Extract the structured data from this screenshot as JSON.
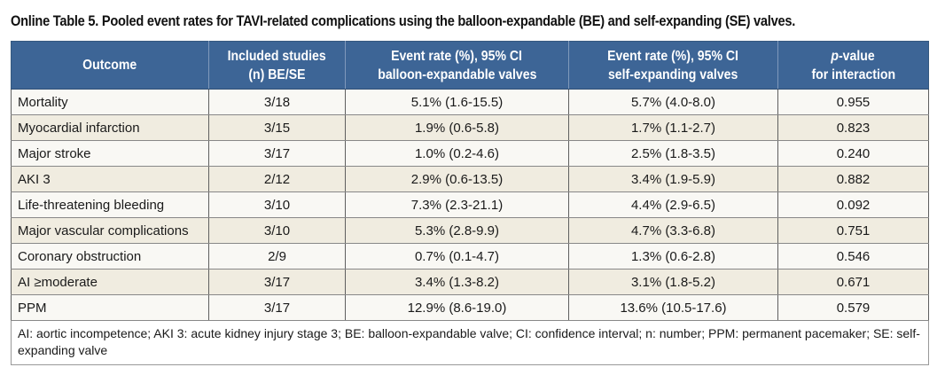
{
  "caption": "Online Table 5. Pooled event rates for TAVI-related complications using the balloon-expandable (BE) and self-expanding (SE) valves.",
  "header": {
    "outcome": "Outcome",
    "studies_line1": "Included studies",
    "studies_line2": "(n) BE/SE",
    "be_line1": "Event rate (%), 95% CI",
    "be_line2": "balloon-expandable valves",
    "se_line1": "Event rate (%), 95% CI",
    "se_line2": "self-expanding valves",
    "p_italic": "p",
    "p_line1_rest": "-value",
    "p_line2": "for interaction"
  },
  "rows": [
    {
      "outcome": "Mortality",
      "studies": "3/18",
      "be": "5.1% (1.6-15.5)",
      "se": "5.7% (4.0-8.0)",
      "p": "0.955"
    },
    {
      "outcome": "Myocardial infarction",
      "studies": "3/15",
      "be": "1.9% (0.6-5.8)",
      "se": "1.7% (1.1-2.7)",
      "p": "0.823"
    },
    {
      "outcome": "Major stroke",
      "studies": "3/17",
      "be": "1.0% (0.2-4.6)",
      "se": "2.5% (1.8-3.5)",
      "p": "0.240"
    },
    {
      "outcome": "AKI 3",
      "studies": "2/12",
      "be": "2.9% (0.6-13.5)",
      "se": "3.4% (1.9-5.9)",
      "p": "0.882"
    },
    {
      "outcome": "Life-threatening bleeding",
      "studies": "3/10",
      "be": "7.3% (2.3-21.1)",
      "se": "4.4% (2.9-6.5)",
      "p": "0.092"
    },
    {
      "outcome": "Major vascular complications",
      "studies": "3/10",
      "be": "5.3% (2.8-9.9)",
      "se": "4.7% (3.3-6.8)",
      "p": "0.751"
    },
    {
      "outcome": "Coronary obstruction",
      "studies": "2/9",
      "be": "0.7% (0.1-4.7)",
      "se": "1.3% (0.6-2.8)",
      "p": "0.546"
    },
    {
      "outcome": "AI ≥moderate",
      "studies": "3/17",
      "be": "3.4% (1.3-8.2)",
      "se": "3.1% (1.8-5.2)",
      "p": "0.671"
    },
    {
      "outcome": "PPM",
      "studies": "3/17",
      "be": "12.9% (8.6-19.0)",
      "se": "13.6% (10.5-17.6)",
      "p": "0.579"
    }
  ],
  "footnote": "AI: aortic incompetence; AKI 3: acute kidney injury stage 3; BE: balloon-expandable valve; CI: confidence interval; n: number; PPM: permanent pacemaker; SE: self-expanding valve",
  "colors": {
    "header_bg": "#3d6596",
    "row_odd_bg": "#f9f8f4",
    "row_even_bg": "#f0ece0"
  }
}
